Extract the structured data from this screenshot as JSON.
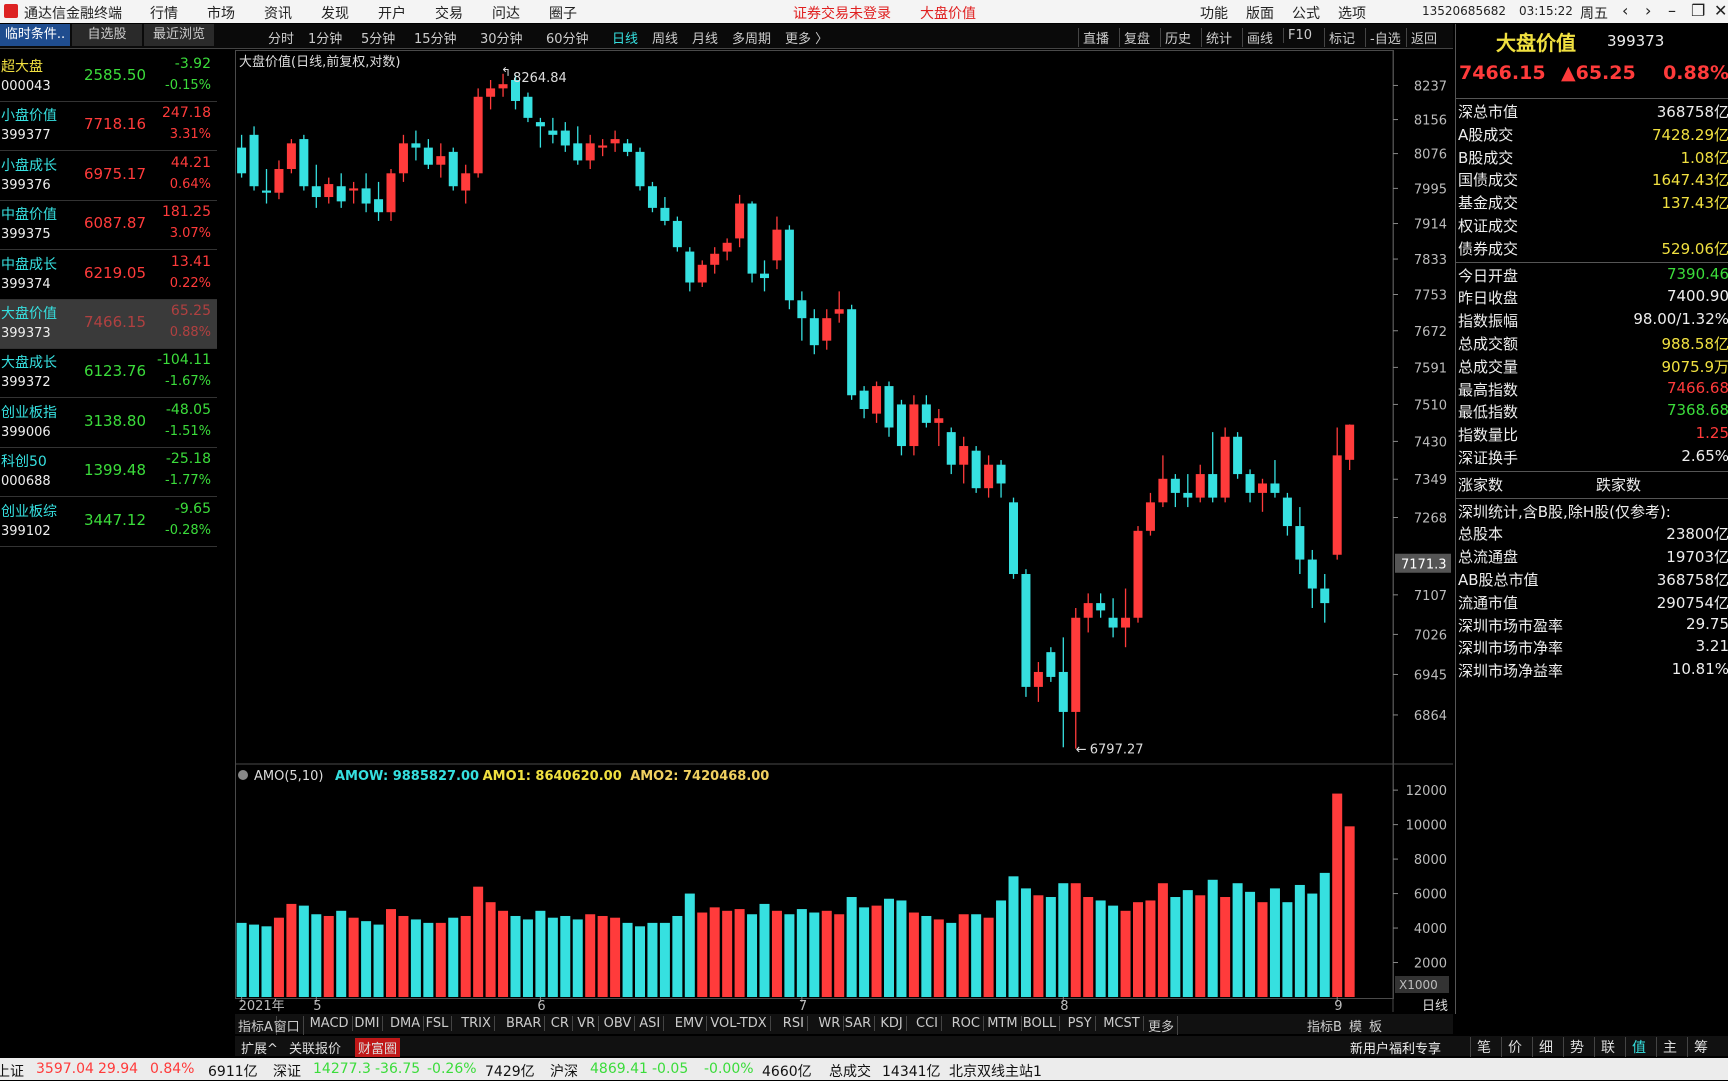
{
  "menubar": {
    "app_title": "通达信金融终端",
    "menu": [
      "行情",
      "市场",
      "资讯",
      "发现",
      "开户",
      "交易",
      "问达",
      "圈子"
    ],
    "notice": "证券交易未登录",
    "current": "大盘价值",
    "right_menu": [
      "功能",
      "版面",
      "公式",
      "选项"
    ],
    "user": "13520685682",
    "time": "03:15:22",
    "weekday": "周五"
  },
  "toolbar": {
    "periods": [
      "分时",
      "1分钟",
      "5分钟",
      "15分钟",
      "30分钟",
      "60分钟",
      "日线",
      "周线",
      "月线",
      "多周期",
      "更多 〉"
    ],
    "tools": [
      "直播",
      "复盘",
      "历史",
      "统计",
      "画线",
      "F10",
      "标记",
      "-自选",
      "返回"
    ]
  },
  "sidebar": {
    "tabs": [
      "临时条件..",
      "自选股",
      "最近浏览"
    ],
    "rows": [
      {
        "name": "超大盘",
        "code": "000043",
        "price": "2585.50",
        "change": "-3.92",
        "pct": "-0.15%"
      },
      {
        "name": "小盘价值",
        "code": "399377",
        "price": "7718.16",
        "change": "247.18",
        "pct": "3.31%"
      },
      {
        "name": "小盘成长",
        "code": "399376",
        "price": "6975.17",
        "change": "44.21",
        "pct": "0.64%"
      },
      {
        "name": "中盘价值",
        "code": "399375",
        "price": "6087.87",
        "change": "181.25",
        "pct": "3.07%"
      },
      {
        "name": "中盘成长",
        "code": "399374",
        "price": "6219.05",
        "change": "13.41",
        "pct": "0.22%"
      },
      {
        "name": "大盘价值",
        "code": "399373",
        "price": "7466.15",
        "change": "65.25",
        "pct": "0.88%",
        "selected": true
      },
      {
        "name": "大盘成长",
        "code": "399372",
        "price": "6123.76",
        "change": "-104.11",
        "pct": "-1.67%"
      },
      {
        "name": "创业板指",
        "code": "399006",
        "price": "3138.80",
        "change": "-48.05",
        "pct": "-1.51%"
      },
      {
        "name": "科创50",
        "code": "000688",
        "price": "1399.48",
        "change": "-25.18",
        "pct": "-1.77%"
      },
      {
        "name": "创业板综",
        "code": "399102",
        "price": "3447.12",
        "change": "-9.65",
        "pct": "-0.28%"
      }
    ]
  },
  "chart_data": [
    {
      "type": "candlestick",
      "title": "大盘价值(日线,前复权,对数)",
      "log_scale": true,
      "up_color": "#ff3b3b",
      "down_color": "#36e0e0",
      "ylim": [
        6775,
        8322
      ],
      "yticks": [
        6864,
        6945,
        7026,
        7107,
        7268,
        7349,
        7430,
        7510,
        7591,
        7672,
        7753,
        7833,
        7914,
        7995,
        8076,
        8156,
        8237
      ],
      "cursor": 7171.3,
      "xticks": [
        {
          "value": 0,
          "label": "2021年"
        },
        {
          "value": 6,
          "label": "5"
        },
        {
          "value": 24,
          "label": "6"
        },
        {
          "value": 45,
          "label": "7"
        },
        {
          "value": 66,
          "label": "8"
        },
        {
          "value": 88,
          "label": "9"
        }
      ],
      "period_label": "日线",
      "candles": [
        [
          8090,
          8120,
          8020,
          8030
        ],
        [
          8120,
          8140,
          7990,
          8000
        ],
        [
          7990,
          8040,
          7960,
          7985
        ],
        [
          7985,
          8060,
          7970,
          8040
        ],
        [
          8040,
          8110,
          8030,
          8100
        ],
        [
          8110,
          8120,
          7990,
          8000
        ],
        [
          8000,
          8050,
          7950,
          7975
        ],
        [
          7975,
          8020,
          7960,
          8005
        ],
        [
          8000,
          8030,
          7950,
          7965
        ],
        [
          7990,
          8010,
          7960,
          7995
        ],
        [
          7995,
          8030,
          7940,
          7960
        ],
        [
          7970,
          8010,
          7920,
          7940
        ],
        [
          7940,
          8040,
          7920,
          8030
        ],
        [
          8030,
          8120,
          8010,
          8100
        ],
        [
          8100,
          8130,
          8060,
          8090
        ],
        [
          8090,
          8110,
          8040,
          8050
        ],
        [
          8050,
          8100,
          8020,
          8070
        ],
        [
          8080,
          8090,
          7990,
          8000
        ],
        [
          7990,
          8050,
          7960,
          8030
        ],
        [
          8030,
          8230,
          8020,
          8210
        ],
        [
          8210,
          8250,
          8180,
          8230
        ],
        [
          8230,
          8264.84,
          8210,
          8240
        ],
        [
          8250,
          8262,
          8180,
          8200
        ],
        [
          8210,
          8220,
          8150,
          8160
        ],
        [
          8150,
          8160,
          8090,
          8140
        ],
        [
          8130,
          8160,
          8100,
          8120
        ],
        [
          8130,
          8150,
          8080,
          8095
        ],
        [
          8100,
          8140,
          8050,
          8060
        ],
        [
          8060,
          8120,
          8040,
          8100
        ],
        [
          8090,
          8110,
          8070,
          8095
        ],
        [
          8100,
          8130,
          8080,
          8110
        ],
        [
          8100,
          8110,
          8070,
          8080
        ],
        [
          8080,
          8090,
          7990,
          8000
        ],
        [
          8000,
          8010,
          7940,
          7950
        ],
        [
          7950,
          7975,
          7910,
          7920
        ],
        [
          7920,
          7930,
          7850,
          7860
        ],
        [
          7850,
          7860,
          7760,
          7780
        ],
        [
          7780,
          7830,
          7770,
          7820
        ],
        [
          7820,
          7860,
          7800,
          7845
        ],
        [
          7850,
          7880,
          7830,
          7870
        ],
        [
          7880,
          7980,
          7860,
          7960
        ],
        [
          7960,
          7965,
          7780,
          7800
        ],
        [
          7800,
          7830,
          7760,
          7790
        ],
        [
          7830,
          7930,
          7810,
          7900
        ],
        [
          7900,
          7910,
          7720,
          7740
        ],
        [
          7740,
          7760,
          7650,
          7700
        ],
        [
          7700,
          7720,
          7620,
          7640
        ],
        [
          7650,
          7720,
          7630,
          7700
        ],
        [
          7710,
          7760,
          7690,
          7720
        ],
        [
          7720,
          7730,
          7520,
          7530
        ],
        [
          7540,
          7550,
          7480,
          7500
        ],
        [
          7490,
          7560,
          7470,
          7550
        ],
        [
          7550,
          7560,
          7440,
          7460
        ],
        [
          7510,
          7520,
          7400,
          7420
        ],
        [
          7420,
          7530,
          7400,
          7510
        ],
        [
          7510,
          7530,
          7460,
          7470
        ],
        [
          7470,
          7500,
          7420,
          7480
        ],
        [
          7450,
          7460,
          7360,
          7380
        ],
        [
          7380,
          7440,
          7340,
          7420
        ],
        [
          7410,
          7420,
          7320,
          7330
        ],
        [
          7330,
          7400,
          7310,
          7380
        ],
        [
          7380,
          7390,
          7310,
          7340
        ],
        [
          7300,
          7310,
          7140,
          7150
        ],
        [
          7150,
          7160,
          6900,
          6920
        ],
        [
          6920,
          6970,
          6890,
          6950
        ],
        [
          6990,
          7000,
          6930,
          6940
        ],
        [
          6950,
          7020,
          6800,
          6870
        ],
        [
          6870,
          7080,
          6797.27,
          7060
        ],
        [
          7060,
          7110,
          7030,
          7090
        ],
        [
          7090,
          7110,
          7060,
          7075
        ],
        [
          7060,
          7100,
          7020,
          7040
        ],
        [
          7040,
          7120,
          7000,
          7060
        ],
        [
          7060,
          7250,
          7050,
          7240
        ],
        [
          7240,
          7320,
          7230,
          7300
        ],
        [
          7300,
          7400,
          7290,
          7350
        ],
        [
          7350,
          7360,
          7290,
          7320
        ],
        [
          7320,
          7360,
          7290,
          7310
        ],
        [
          7310,
          7380,
          7300,
          7360
        ],
        [
          7360,
          7450,
          7300,
          7310
        ],
        [
          7310,
          7460,
          7300,
          7440
        ],
        [
          7440,
          7450,
          7350,
          7360
        ],
        [
          7360,
          7370,
          7300,
          7320
        ],
        [
          7320,
          7350,
          7280,
          7340
        ],
        [
          7340,
          7390,
          7310,
          7320
        ],
        [
          7310,
          7320,
          7230,
          7250
        ],
        [
          7250,
          7290,
          7150,
          7180
        ],
        [
          7180,
          7200,
          7080,
          7120
        ],
        [
          7120,
          7150,
          7050,
          7090
        ],
        [
          7190,
          7460,
          7180,
          7400
        ],
        [
          7390.46,
          7466.68,
          7368.68,
          7466.15
        ]
      ]
    },
    {
      "type": "bar",
      "title": "AMO(5,10)",
      "unit_label": "X1000",
      "legend": [
        {
          "text": "AMOW: 9885827.00",
          "color": "#36e0e0"
        },
        {
          "text": "AMO1: 8640620.00",
          "color": "#f0e040"
        },
        {
          "text": "AMO2: 7420468.00",
          "color": "#f0d060"
        }
      ],
      "ylim": [
        0,
        13400
      ],
      "yticks": [
        2000,
        4000,
        6000,
        8000,
        10000,
        12000
      ],
      "values": [
        4300,
        4200,
        4100,
        4600,
        5400,
        5300,
        4800,
        4700,
        5000,
        4600,
        4400,
        4200,
        5100,
        4700,
        4500,
        4300,
        4300,
        4600,
        4700,
        6400,
        5500,
        5000,
        4700,
        4500,
        5000,
        4600,
        4700,
        4500,
        4800,
        4700,
        4600,
        4300,
        4100,
        4300,
        4300,
        4700,
        6000,
        4900,
        5200,
        5000,
        5100,
        4800,
        5400,
        5000,
        4800,
        5100,
        4900,
        5000,
        4800,
        5800,
        5200,
        5300,
        5700,
        5600,
        4900,
        4700,
        4500,
        4300,
        4800,
        4800,
        4600,
        5600,
        7000,
        6300,
        5900,
        5800,
        6600,
        6600,
        5800,
        5600,
        5300,
        5000,
        5500,
        5600,
        6600,
        5800,
        6200,
        5900,
        6800,
        5800,
        6600,
        6100,
        5500,
        6300,
        5500,
        6500,
        6000,
        7200,
        11800,
        9900
      ]
    }
  ],
  "quote_panel": {
    "name": "大盘价值",
    "code": "399373",
    "price": "7466.15",
    "change": "▲65.25",
    "pct": "0.88%",
    "sections": [
      [
        {
          "label": "深总市值",
          "value": "368758亿"
        },
        {
          "label": "A股成交",
          "value": "7428.29亿",
          "color": "#f0e040"
        },
        {
          "label": "B股成交",
          "value": "1.08亿",
          "color": "#f0e040"
        },
        {
          "label": "国债成交",
          "value": "1647.43亿",
          "color": "#f0e040"
        },
        {
          "label": "基金成交",
          "value": "137.43亿",
          "color": "#f0e040"
        },
        {
          "label": "权证成交"
        },
        {
          "label": "债券成交",
          "value": "529.06亿",
          "color": "#f0e040"
        }
      ],
      [
        {
          "label": "今日开盘",
          "value": "7390.46",
          "color": "#3bdc3b"
        },
        {
          "label": "昨日收盘",
          "value": "7400.90"
        },
        {
          "label": "指数振幅",
          "value": "98.00/1.32%"
        },
        {
          "label": "总成交额",
          "value": "988.58亿",
          "color": "#f0e040"
        },
        {
          "label": "总成交量",
          "value": "9075.9万",
          "color": "#f0e040"
        },
        {
          "label": "最高指数",
          "value": "7466.68",
          "color": "#ff3b3b"
        },
        {
          "label": "最低指数",
          "value": "7368.68",
          "color": "#3bdc3b"
        },
        {
          "label": "指数量比",
          "value": "1.25",
          "color": "#ff3b3b"
        },
        {
          "label": "深证换手",
          "value": "2.65%"
        }
      ],
      [
        {
          "label": "涨家数",
          "value": "跌家数"
        }
      ],
      [
        {
          "label": "深圳统计,含B股,除H股(仅参考):"
        },
        {
          "label": "总股本",
          "value": "23800亿"
        },
        {
          "label": "总流通盘",
          "value": "19703亿"
        },
        {
          "label": "AB股总市值",
          "value": "368758亿"
        },
        {
          "label": "流通市值",
          "value": "290754亿"
        },
        {
          "label": "深圳市场市盈率",
          "value": "29.75"
        },
        {
          "label": "深圳市场市净率",
          "value": "3.21"
        },
        {
          "label": "深圳市场净益率",
          "value": "10.81%"
        }
      ]
    ]
  },
  "bottom_tabs": {
    "indicators": [
      "指标A",
      "窗口",
      "MACD",
      "DMI",
      "DMA",
      "FSL",
      "TRIX",
      "BRAR",
      "CR",
      "VR",
      "OBV",
      "ASI",
      "EMV",
      "VOL-TDX",
      "RSI",
      "WR",
      "SAR",
      "KDJ",
      "CCI",
      "ROC",
      "MTM",
      "BOLL",
      "PSY",
      "MCST",
      "更多"
    ],
    "right": [
      "指标B",
      "模",
      "板"
    ],
    "extras": [
      "扩展^",
      "关联报价",
      "财富圈"
    ],
    "promo": "新用户福利专享",
    "side_tabs": [
      "笔",
      "价",
      "细",
      "势",
      "联",
      "值",
      "主",
      "筹"
    ]
  },
  "status_bar": {
    "markets": [
      {
        "name": "上证",
        "price": "3597.04",
        "change": "29.94",
        "pct": "0.84%",
        "amount": "6911亿"
      },
      {
        "name": "深证",
        "price": "14277.3",
        "change": "-36.75",
        "pct": "-0.26%",
        "amount": "7429亿"
      },
      {
        "name": "沪深",
        "price": "4869.41",
        "change": "-0.05",
        "pct": "-0.00%",
        "amount": "4660亿"
      }
    ],
    "total_label": "总成交",
    "total": "14341亿",
    "server": "北京双线主站1"
  }
}
